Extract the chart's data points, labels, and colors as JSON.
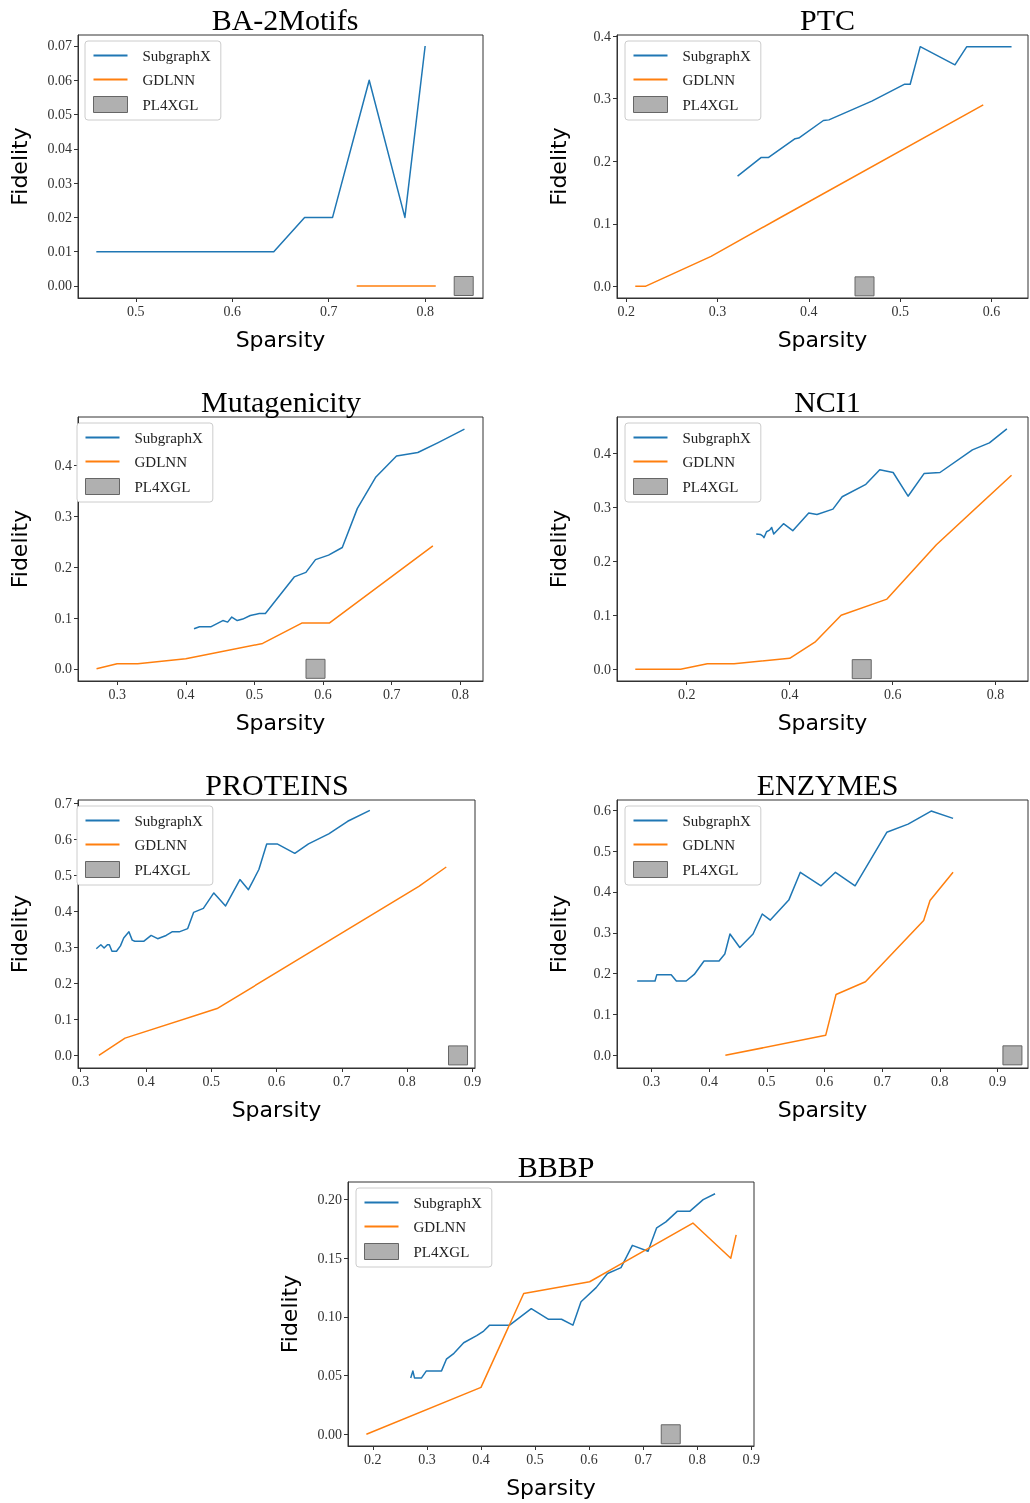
{
  "chart_data": [
    {
      "type": "line",
      "title": "BA-2Motifs",
      "xlabel": "Sparsity",
      "ylabel": "Fidelity",
      "xlim": [
        0.44,
        0.86
      ],
      "ylim": [
        -0.0035,
        0.0732
      ],
      "xticks": [
        0.5,
        0.6,
        0.7,
        0.8
      ],
      "yticks": [
        {
          "value": 0,
          "label": "0.00"
        },
        0.01,
        0.02,
        0.03,
        0.04,
        0.05,
        0.06,
        0.07
      ],
      "grid": false,
      "legend": "top left",
      "marker": "none",
      "series": [
        {
          "name": "SubgraphX",
          "color": "#1f77b4",
          "x": [
            0.459,
            0.643,
            0.675,
            0.704,
            0.742,
            0.779,
            0.8
          ],
          "values": [
            0.01,
            0.01,
            0.02,
            0.02,
            0.06,
            0.02,
            0.07
          ]
        },
        {
          "name": "GDLNN",
          "color": "#ff7f0e",
          "x": [
            0.729,
            0.811
          ],
          "values": [
            0,
            0
          ]
        },
        {
          "name": "PL4XGL",
          "type": "scatter",
          "marker": "square",
          "color": "#b0b0b0",
          "x": [
            0.84
          ],
          "values": [
            0
          ]
        }
      ]
    },
    {
      "type": "line",
      "title": "PTC",
      "xlabel": "Sparsity",
      "ylabel": "Fidelity",
      "xlim": [
        0.19,
        0.64
      ],
      "ylim": [
        -0.0186,
        0.4016
      ],
      "xticks": [
        0.2,
        0.3,
        0.4,
        0.5,
        0.6
      ],
      "yticks": [
        {
          "value": 0,
          "label": "0.0"
        },
        0.1,
        0.2,
        0.3,
        0.4
      ],
      "grid": false,
      "legend": "top left",
      "marker": "none",
      "series": [
        {
          "name": "SubgraphX",
          "color": "#1f77b4",
          "x": [
            0.322,
            0.348,
            0.356,
            0.385,
            0.389,
            0.416,
            0.422,
            0.469,
            0.505,
            0.511,
            0.522,
            0.56,
            0.573,
            0.622
          ],
          "values": [
            0.176,
            0.206,
            0.206,
            0.236,
            0.237,
            0.265,
            0.266,
            0.296,
            0.323,
            0.323,
            0.383,
            0.354,
            0.383,
            0.383
          ]
        },
        {
          "name": "GDLNN",
          "color": "#ff7f0e",
          "x": [
            0.21,
            0.221,
            0.293,
            0.369,
            0.591
          ],
          "values": [
            0,
            0,
            0.048,
            0.11,
            0.29
          ]
        },
        {
          "name": "PL4XGL",
          "type": "scatter",
          "marker": "square",
          "color": "#b0b0b0",
          "x": [
            0.461
          ],
          "values": [
            0
          ]
        }
      ]
    },
    {
      "type": "line",
      "title": "Mutagenicity",
      "xlabel": "Sparsity",
      "ylabel": "Fidelity",
      "xlim": [
        0.243,
        0.833
      ],
      "ylim": [
        -0.024,
        0.496
      ],
      "xticks": [
        0.3,
        0.4,
        0.5,
        0.6,
        0.7,
        0.8
      ],
      "yticks": [
        {
          "value": 0,
          "label": "0.0"
        },
        0.1,
        0.2,
        0.3,
        0.4
      ],
      "grid": false,
      "legend": "top left",
      "marker": "none",
      "series": [
        {
          "name": "SubgraphX",
          "color": "#1f77b4",
          "x": [
            0.412,
            0.42,
            0.437,
            0.454,
            0.461,
            0.467,
            0.475,
            0.483,
            0.494,
            0.507,
            0.516,
            0.558,
            0.575,
            0.589,
            0.608,
            0.628,
            0.65,
            0.677,
            0.707,
            0.738,
            0.767,
            0.806
          ],
          "values": [
            0.079,
            0.083,
            0.083,
            0.095,
            0.092,
            0.102,
            0.095,
            0.098,
            0.105,
            0.109,
            0.109,
            0.181,
            0.19,
            0.215,
            0.224,
            0.239,
            0.316,
            0.378,
            0.419,
            0.426,
            0.445,
            0.472
          ]
        },
        {
          "name": "GDLNN",
          "color": "#ff7f0e",
          "x": [
            0.27,
            0.3,
            0.33,
            0.4,
            0.512,
            0.569,
            0.609,
            0.76
          ],
          "values": [
            0,
            0.01,
            0.01,
            0.02,
            0.05,
            0.09,
            0.09,
            0.242
          ]
        },
        {
          "name": "PL4XGL",
          "type": "scatter",
          "marker": "square",
          "color": "#b0b0b0",
          "x": [
            0.589
          ],
          "values": [
            0
          ]
        }
      ]
    },
    {
      "type": "line",
      "title": "NCI1",
      "xlabel": "Sparsity",
      "ylabel": "Fidelity",
      "xlim": [
        0.0645,
        0.863
      ],
      "ylim": [
        -0.022,
        0.468
      ],
      "xticks": [
        0.2,
        0.4,
        0.6,
        0.8
      ],
      "yticks": [
        {
          "value": 0,
          "label": "0.0"
        },
        0.1,
        0.2,
        0.3,
        0.4
      ],
      "grid": false,
      "legend": "top left",
      "marker": "none",
      "series": [
        {
          "name": "SubgraphX",
          "color": "#1f77b4",
          "x": [
            0.335,
            0.343,
            0.348,
            0.35,
            0.355,
            0.361,
            0.365,
            0.369,
            0.388,
            0.406,
            0.437,
            0.453,
            0.484,
            0.502,
            0.548,
            0.575,
            0.601,
            0.63,
            0.661,
            0.692,
            0.755,
            0.788,
            0.822
          ],
          "values": [
            0.251,
            0.25,
            0.247,
            0.244,
            0.255,
            0.258,
            0.263,
            0.251,
            0.27,
            0.257,
            0.29,
            0.287,
            0.297,
            0.32,
            0.343,
            0.37,
            0.365,
            0.321,
            0.363,
            0.365,
            0.407,
            0.42,
            0.446
          ]
        },
        {
          "name": "GDLNN",
          "color": "#ff7f0e",
          "x": [
            0.1,
            0.188,
            0.24,
            0.292,
            0.4,
            0.449,
            0.5,
            0.589,
            0.685,
            0.831
          ],
          "values": [
            0,
            0,
            0.01,
            0.01,
            0.02,
            0.05,
            0.1,
            0.13,
            0.231,
            0.36
          ]
        },
        {
          "name": "PL4XGL",
          "type": "scatter",
          "marker": "square",
          "color": "#b0b0b0",
          "x": [
            0.54
          ],
          "values": [
            0
          ]
        }
      ]
    },
    {
      "type": "line",
      "title": "PROTEINS",
      "xlabel": "Sparsity",
      "ylabel": "Fidelity",
      "xlim": [
        0.296,
        0.904
      ],
      "ylim": [
        -0.035,
        0.709
      ],
      "xticks": [
        0.3,
        0.4,
        0.5,
        0.6,
        0.7,
        0.8,
        0.9
      ],
      "yticks": [
        {
          "value": 0,
          "label": "0.0"
        },
        0.1,
        0.2,
        0.3,
        0.4,
        0.5,
        0.6,
        0.7
      ],
      "grid": false,
      "legend": "top left",
      "marker": "none",
      "series": [
        {
          "name": "SubgraphX",
          "color": "#1f77b4",
          "x": [
            0.324,
            0.331,
            0.336,
            0.341,
            0.344,
            0.348,
            0.355,
            0.361,
            0.366,
            0.374,
            0.379,
            0.383,
            0.397,
            0.408,
            0.418,
            0.431,
            0.44,
            0.451,
            0.464,
            0.473,
            0.488,
            0.504,
            0.522,
            0.544,
            0.557,
            0.573,
            0.585,
            0.601,
            0.628,
            0.649,
            0.68,
            0.709,
            0.743
          ],
          "values": [
            0.296,
            0.307,
            0.298,
            0.307,
            0.307,
            0.289,
            0.289,
            0.304,
            0.326,
            0.343,
            0.32,
            0.317,
            0.317,
            0.333,
            0.324,
            0.333,
            0.343,
            0.343,
            0.352,
            0.397,
            0.408,
            0.451,
            0.415,
            0.488,
            0.46,
            0.516,
            0.587,
            0.587,
            0.561,
            0.587,
            0.615,
            0.65,
            0.68
          ]
        },
        {
          "name": "GDLNN",
          "color": "#ff7f0e",
          "x": [
            0.328,
            0.368,
            0.509,
            0.818,
            0.86
          ],
          "values": [
            0,
            0.048,
            0.13,
            0.469,
            0.523
          ]
        },
        {
          "name": "PL4XGL",
          "type": "scatter",
          "marker": "square",
          "color": "#b0b0b0",
          "x": [
            0.878
          ],
          "values": [
            0
          ]
        }
      ]
    },
    {
      "type": "line",
      "title": "ENZYMES",
      "xlabel": "Sparsity",
      "ylabel": "Fidelity",
      "xlim": [
        0.24,
        0.953
      ],
      "ylim": [
        -0.031,
        0.625
      ],
      "xticks": [
        0.3,
        0.4,
        0.5,
        0.6,
        0.7,
        0.8,
        0.9
      ],
      "yticks": [
        {
          "value": 0,
          "label": "0.0"
        },
        0.1,
        0.2,
        0.3,
        0.4,
        0.5,
        0.6
      ],
      "grid": false,
      "legend": "top left",
      "marker": "none",
      "series": [
        {
          "name": "SubgraphX",
          "color": "#1f77b4",
          "x": [
            0.275,
            0.306,
            0.309,
            0.334,
            0.343,
            0.36,
            0.374,
            0.391,
            0.417,
            0.427,
            0.436,
            0.453,
            0.476,
            0.492,
            0.506,
            0.538,
            0.558,
            0.594,
            0.619,
            0.653,
            0.708,
            0.745,
            0.785,
            0.823
          ],
          "values": [
            0.182,
            0.182,
            0.197,
            0.197,
            0.182,
            0.182,
            0.198,
            0.231,
            0.231,
            0.248,
            0.297,
            0.264,
            0.297,
            0.346,
            0.331,
            0.38,
            0.448,
            0.415,
            0.448,
            0.415,
            0.546,
            0.566,
            0.598,
            0.58
          ]
        },
        {
          "name": "GDLNN",
          "color": "#ff7f0e",
          "x": [
            0.428,
            0.602,
            0.62,
            0.671,
            0.772,
            0.783,
            0.823
          ],
          "values": [
            0,
            0.049,
            0.149,
            0.18,
            0.33,
            0.379,
            0.448
          ]
        },
        {
          "name": "PL4XGL",
          "type": "scatter",
          "marker": "square",
          "color": "#b0b0b0",
          "x": [
            0.926
          ],
          "values": [
            0
          ]
        }
      ]
    },
    {
      "type": "line",
      "title": "BBBP",
      "xlabel": "Sparsity",
      "ylabel": "Fidelity",
      "xlim": [
        0.154,
        0.905
      ],
      "ylim": [
        -0.01,
        0.215
      ],
      "xticks": [
        0.2,
        0.3,
        0.4,
        0.5,
        0.6,
        0.7,
        0.8,
        0.9
      ],
      "yticks": [
        {
          "value": 0,
          "label": "0.00"
        },
        0.05,
        {
          "value": 0.1,
          "label": "0.10"
        },
        0.15,
        {
          "value": 0.2,
          "label": "0.20"
        }
      ],
      "grid": false,
      "legend": "top left",
      "marker": "none",
      "series": [
        {
          "name": "SubgraphX",
          "color": "#1f77b4",
          "x": [
            0.27,
            0.274,
            0.277,
            0.29,
            0.299,
            0.327,
            0.336,
            0.35,
            0.368,
            0.392,
            0.405,
            0.416,
            0.453,
            0.493,
            0.525,
            0.549,
            0.57,
            0.585,
            0.613,
            0.634,
            0.659,
            0.68,
            0.709,
            0.725,
            0.742,
            0.763,
            0.786,
            0.811,
            0.833
          ],
          "values": [
            0.048,
            0.054,
            0.048,
            0.048,
            0.054,
            0.054,
            0.064,
            0.069,
            0.078,
            0.084,
            0.088,
            0.093,
            0.093,
            0.107,
            0.098,
            0.098,
            0.093,
            0.113,
            0.125,
            0.137,
            0.142,
            0.161,
            0.156,
            0.176,
            0.181,
            0.19,
            0.19,
            0.2,
            0.205
          ]
        },
        {
          "name": "GDLNN",
          "color": "#ff7f0e",
          "x": [
            0.188,
            0.4,
            0.479,
            0.601,
            0.792,
            0.862,
            0.872
          ],
          "values": [
            0,
            0.04,
            0.12,
            0.13,
            0.18,
            0.15,
            0.17
          ]
        },
        {
          "name": "PL4XGL",
          "type": "scatter",
          "marker": "square",
          "color": "#b0b0b0",
          "x": [
            0.751
          ],
          "values": [
            0
          ]
        }
      ]
    }
  ]
}
